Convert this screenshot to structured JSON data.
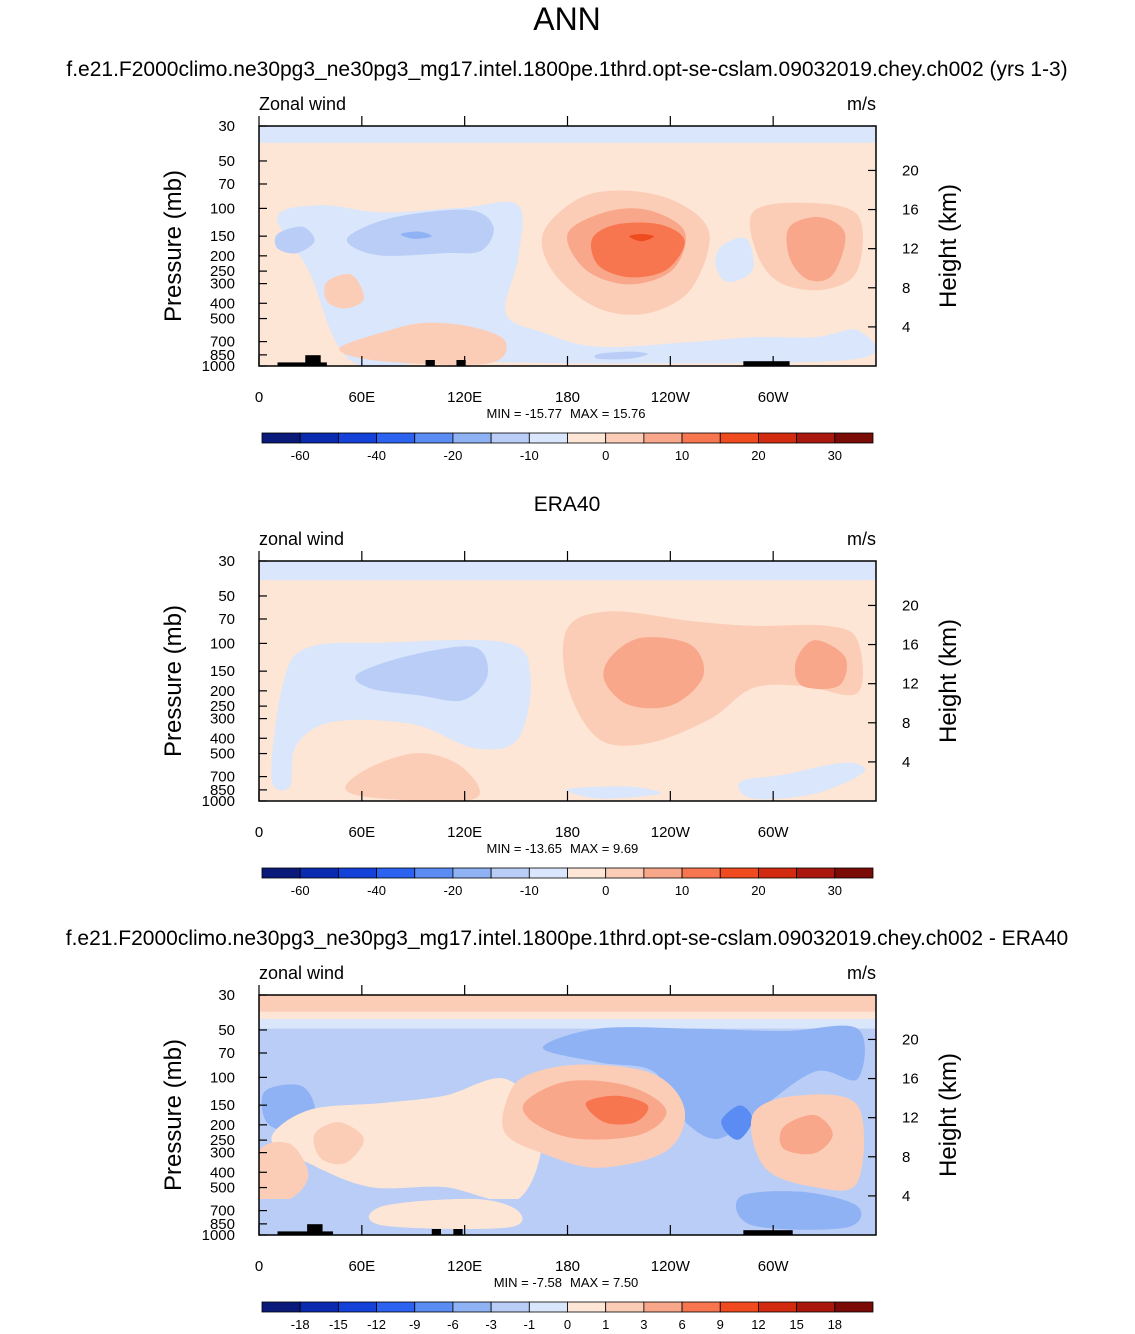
{
  "page_title": "ANN",
  "chart_data": [
    {
      "type": "heatmap",
      "title": "f.e21.F2000climo.ne30pg3_ne30pg3_mg17.intel.1800pe.1thrd.opt-se-cslam.09032019.chey.ch002 (yrs 1-3)",
      "left_label": "Zonal wind",
      "units": "m/s",
      "ylabel": "Pressure (mb)",
      "y2label": "Height (km)",
      "pressure_ticks": [
        "30",
        "50",
        "70",
        "100",
        "150",
        "200",
        "250",
        "300",
        "400",
        "500",
        "700",
        "850",
        "1000"
      ],
      "height_ticks": [
        "20",
        "16",
        "12",
        "8",
        "4"
      ],
      "lon_ticks": [
        "0",
        "60E",
        "120E",
        "180",
        "120W",
        "60W"
      ],
      "min_label": "MIN = -15.77",
      "max_label": "MAX =  15.76",
      "colorbar_labels": [
        "-60",
        "-40",
        "-20",
        "-10",
        "0",
        "10",
        "20",
        "30"
      ],
      "colors": [
        "#0a1a7a",
        "#0a2bb0",
        "#1441d8",
        "#2b62f0",
        "#5a8cf4",
        "#8fb2f4",
        "#b9cdf7",
        "#d9e6fb",
        "#fde6d6",
        "#fccdb6",
        "#f9a78a",
        "#f7764f",
        "#f04a1f",
        "#d22b10",
        "#a9170d",
        "#7a0b06"
      ],
      "min": -15.77,
      "max": 15.76
    },
    {
      "type": "heatmap",
      "title": "ERA40",
      "left_label": "zonal wind",
      "units": "m/s",
      "ylabel": "Pressure (mb)",
      "y2label": "Height (km)",
      "pressure_ticks": [
        "30",
        "50",
        "70",
        "100",
        "150",
        "200",
        "250",
        "300",
        "400",
        "500",
        "700",
        "850",
        "1000"
      ],
      "height_ticks": [
        "20",
        "16",
        "12",
        "8",
        "4"
      ],
      "lon_ticks": [
        "0",
        "60E",
        "120E",
        "180",
        "120W",
        "60W"
      ],
      "min_label": "MIN = -13.65",
      "max_label": "MAX =   9.69",
      "colorbar_labels": [
        "-60",
        "-40",
        "-20",
        "-10",
        "0",
        "10",
        "20",
        "30"
      ],
      "colors": [
        "#0a1a7a",
        "#0a2bb0",
        "#1441d8",
        "#2b62f0",
        "#5a8cf4",
        "#8fb2f4",
        "#b9cdf7",
        "#d9e6fb",
        "#fde6d6",
        "#fccdb6",
        "#f9a78a",
        "#f7764f",
        "#f04a1f",
        "#d22b10",
        "#a9170d",
        "#7a0b06"
      ],
      "min": -13.65,
      "max": 9.69
    },
    {
      "type": "heatmap",
      "title": "f.e21.F2000climo.ne30pg3_ne30pg3_mg17.intel.1800pe.1thrd.opt-se-cslam.09032019.chey.ch002 - ERA40",
      "left_label": "zonal wind",
      "units": "m/s",
      "ylabel": "Pressure (mb)",
      "y2label": "Height (km)",
      "pressure_ticks": [
        "30",
        "50",
        "70",
        "100",
        "150",
        "200",
        "250",
        "300",
        "400",
        "500",
        "700",
        "850",
        "1000"
      ],
      "height_ticks": [
        "20",
        "16",
        "12",
        "8",
        "4"
      ],
      "lon_ticks": [
        "0",
        "60E",
        "120E",
        "180",
        "120W",
        "60W"
      ],
      "min_label": "MIN =  -7.58",
      "max_label": "MAX =   7.50",
      "colorbar_labels": [
        "-18",
        "-15",
        "-12",
        "-9",
        "-6",
        "-3",
        "-1",
        "0",
        "1",
        "3",
        "6",
        "9",
        "12",
        "15",
        "18"
      ],
      "colors": [
        "#0a1a7a",
        "#0a2bb0",
        "#1441d8",
        "#2b62f0",
        "#5a8cf4",
        "#8fb2f4",
        "#b9cdf7",
        "#d9e6fb",
        "#fde6d6",
        "#fccdb6",
        "#f9a78a",
        "#f7764f",
        "#f04a1f",
        "#d22b10",
        "#a9170d",
        "#7a0b06"
      ],
      "min": -7.58,
      "max": 7.5
    }
  ]
}
